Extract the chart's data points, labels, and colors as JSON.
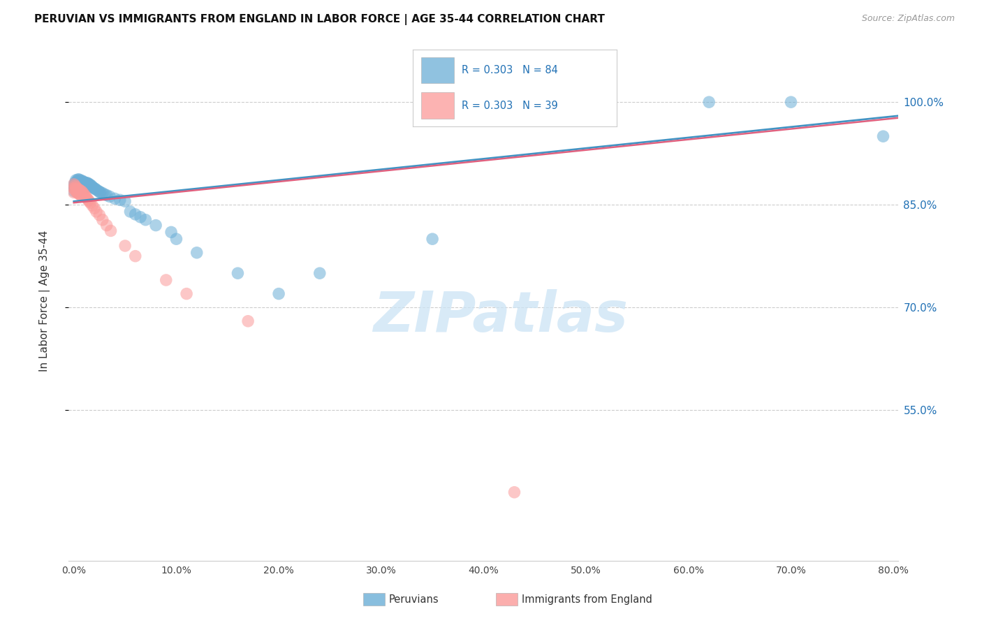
{
  "title": "PERUVIAN VS IMMIGRANTS FROM ENGLAND IN LABOR FORCE | AGE 35-44 CORRELATION CHART",
  "source": "Source: ZipAtlas.com",
  "ylabel": "In Labor Force | Age 35-44",
  "xlim": [
    -0.005,
    0.805
  ],
  "ylim": [
    0.33,
    1.09
  ],
  "blue_R": 0.303,
  "blue_N": 84,
  "pink_R": 0.303,
  "pink_N": 39,
  "blue_color": "#6baed6",
  "pink_color": "#fb9a99",
  "blue_line_color": "#4393c3",
  "pink_line_color": "#e0607e",
  "legend_R_color": "#2171b5",
  "xticks": [
    0.0,
    0.1,
    0.2,
    0.3,
    0.4,
    0.5,
    0.6,
    0.7,
    0.8
  ],
  "xtick_labels": [
    "0.0%",
    "10.0%",
    "20.0%",
    "30.0%",
    "40.0%",
    "50.0%",
    "60.0%",
    "70.0%",
    "80.0%"
  ],
  "yticks": [
    0.55,
    0.7,
    0.85,
    1.0
  ],
  "ytick_labels": [
    "55.0%",
    "70.0%",
    "85.0%",
    "100.0%"
  ],
  "blue_x": [
    0.0,
    0.0,
    0.0,
    0.001,
    0.001,
    0.002,
    0.002,
    0.002,
    0.002,
    0.003,
    0.003,
    0.003,
    0.003,
    0.004,
    0.004,
    0.004,
    0.004,
    0.005,
    0.005,
    0.005,
    0.005,
    0.005,
    0.005,
    0.006,
    0.006,
    0.006,
    0.006,
    0.007,
    0.007,
    0.007,
    0.007,
    0.008,
    0.008,
    0.008,
    0.008,
    0.009,
    0.009,
    0.009,
    0.01,
    0.01,
    0.01,
    0.011,
    0.011,
    0.012,
    0.012,
    0.013,
    0.013,
    0.014,
    0.014,
    0.015,
    0.015,
    0.016,
    0.017,
    0.018,
    0.019,
    0.02,
    0.021,
    0.022,
    0.024,
    0.025,
    0.026,
    0.028,
    0.03,
    0.032,
    0.035,
    0.04,
    0.045,
    0.05,
    0.055,
    0.06,
    0.065,
    0.07,
    0.08,
    0.095,
    0.1,
    0.12,
    0.16,
    0.2,
    0.24,
    0.35,
    0.5,
    0.62,
    0.7,
    0.79
  ],
  "blue_y": [
    0.878,
    0.875,
    0.87,
    0.882,
    0.876,
    0.886,
    0.882,
    0.877,
    0.873,
    0.885,
    0.882,
    0.878,
    0.874,
    0.887,
    0.884,
    0.88,
    0.876,
    0.887,
    0.884,
    0.881,
    0.878,
    0.874,
    0.87,
    0.886,
    0.882,
    0.878,
    0.874,
    0.884,
    0.881,
    0.877,
    0.873,
    0.885,
    0.881,
    0.877,
    0.873,
    0.884,
    0.88,
    0.876,
    0.883,
    0.879,
    0.875,
    0.882,
    0.878,
    0.882,
    0.878,
    0.882,
    0.877,
    0.881,
    0.877,
    0.88,
    0.876,
    0.879,
    0.878,
    0.876,
    0.875,
    0.874,
    0.873,
    0.872,
    0.87,
    0.869,
    0.868,
    0.867,
    0.865,
    0.864,
    0.862,
    0.859,
    0.857,
    0.855,
    0.84,
    0.836,
    0.832,
    0.828,
    0.82,
    0.81,
    0.8,
    0.78,
    0.75,
    0.72,
    0.75,
    0.8,
    1.0,
    1.0,
    1.0,
    0.95
  ],
  "pink_x": [
    0.0,
    0.0,
    0.0,
    0.001,
    0.001,
    0.002,
    0.002,
    0.003,
    0.003,
    0.004,
    0.004,
    0.005,
    0.005,
    0.006,
    0.006,
    0.007,
    0.007,
    0.008,
    0.009,
    0.01,
    0.011,
    0.012,
    0.013,
    0.014,
    0.015,
    0.016,
    0.018,
    0.02,
    0.022,
    0.025,
    0.028,
    0.032,
    0.036,
    0.05,
    0.06,
    0.09,
    0.11,
    0.17,
    0.43
  ],
  "pink_y": [
    0.88,
    0.874,
    0.868,
    0.878,
    0.872,
    0.876,
    0.87,
    0.874,
    0.868,
    0.873,
    0.867,
    0.872,
    0.866,
    0.871,
    0.865,
    0.87,
    0.864,
    0.869,
    0.867,
    0.865,
    0.863,
    0.861,
    0.859,
    0.857,
    0.855,
    0.853,
    0.849,
    0.845,
    0.84,
    0.835,
    0.828,
    0.82,
    0.812,
    0.79,
    0.775,
    0.74,
    0.72,
    0.68,
    0.43
  ],
  "trend_blue": [
    0.0,
    0.805,
    0.855,
    0.98
  ],
  "trend_pink": [
    0.0,
    0.805,
    0.853,
    0.977
  ]
}
